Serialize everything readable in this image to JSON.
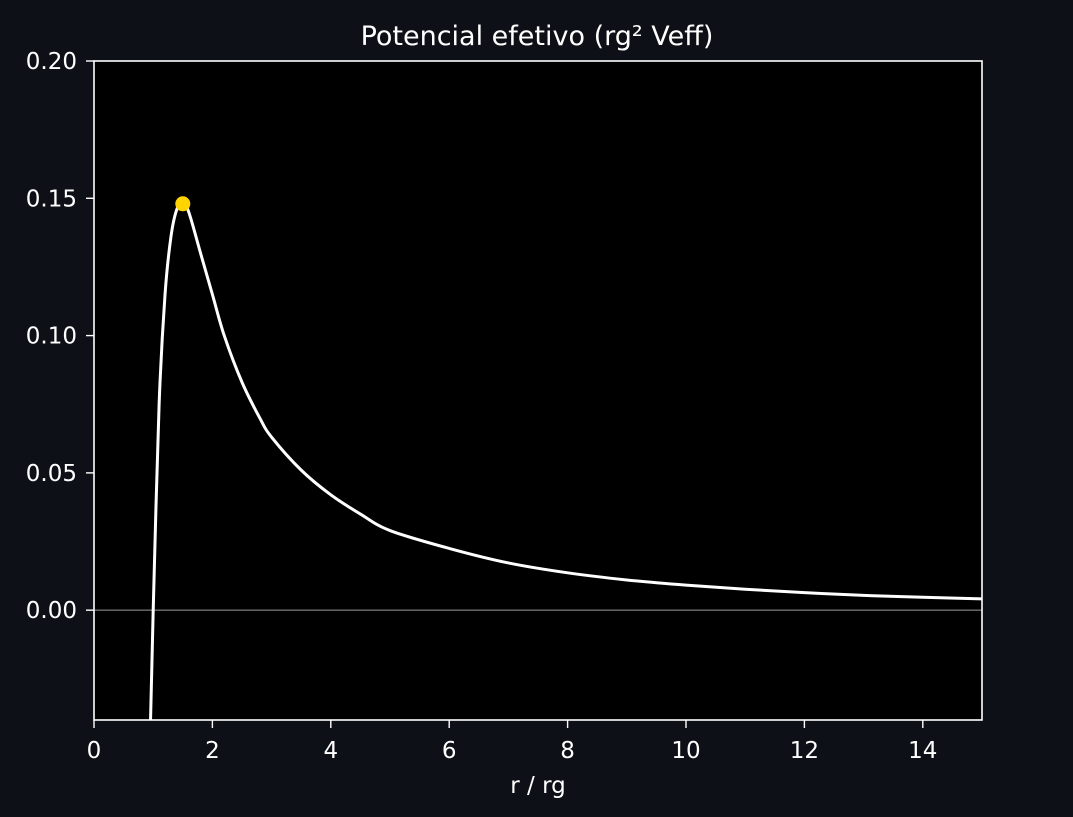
{
  "chart_data": {
    "type": "line",
    "title": "Potencial efetivo (rg² Veff)",
    "xlabel": "r / rg",
    "ylabel": "",
    "xlim": [
      0,
      15
    ],
    "ylim": [
      -0.04,
      0.2
    ],
    "xticks": [
      0,
      2,
      4,
      6,
      8,
      10,
      12,
      14
    ],
    "yticks": [
      0.0,
      0.05,
      0.1,
      0.15,
      0.2
    ],
    "xtick_labels": [
      "0",
      "2",
      "4",
      "6",
      "8",
      "10",
      "12",
      "14"
    ],
    "ytick_labels": [
      "0.00",
      "0.05",
      "0.10",
      "0.15",
      "0.20"
    ],
    "grid": false,
    "zero_line": true,
    "series": [
      {
        "color": "#ffffff",
        "x": [
          0.955,
          1.0,
          1.1,
          1.2,
          1.3,
          1.4,
          1.5,
          1.6,
          1.8,
          2.0,
          2.2,
          2.5,
          2.8,
          3.0,
          3.5,
          4.0,
          4.5,
          5.0,
          6.0,
          7.0,
          8.0,
          9.0,
          10.0,
          11.0,
          12.0,
          13.0,
          14.0,
          15.0
        ],
        "y": [
          -0.04,
          0.0,
          0.075,
          0.115,
          0.136,
          0.146,
          0.148,
          0.145,
          0.13,
          0.115,
          0.1,
          0.083,
          0.07,
          0.063,
          0.051,
          0.042,
          0.035,
          0.029,
          0.0225,
          0.0172,
          0.0136,
          0.011,
          0.0091,
          0.0076,
          0.0064,
          0.0054,
          0.0047,
          0.0041
        ]
      }
    ],
    "markers": [
      {
        "x": 1.5,
        "y": 0.148,
        "color": "#ffd400"
      }
    ],
    "background": "#000000",
    "page_background": "#0d1117"
  }
}
